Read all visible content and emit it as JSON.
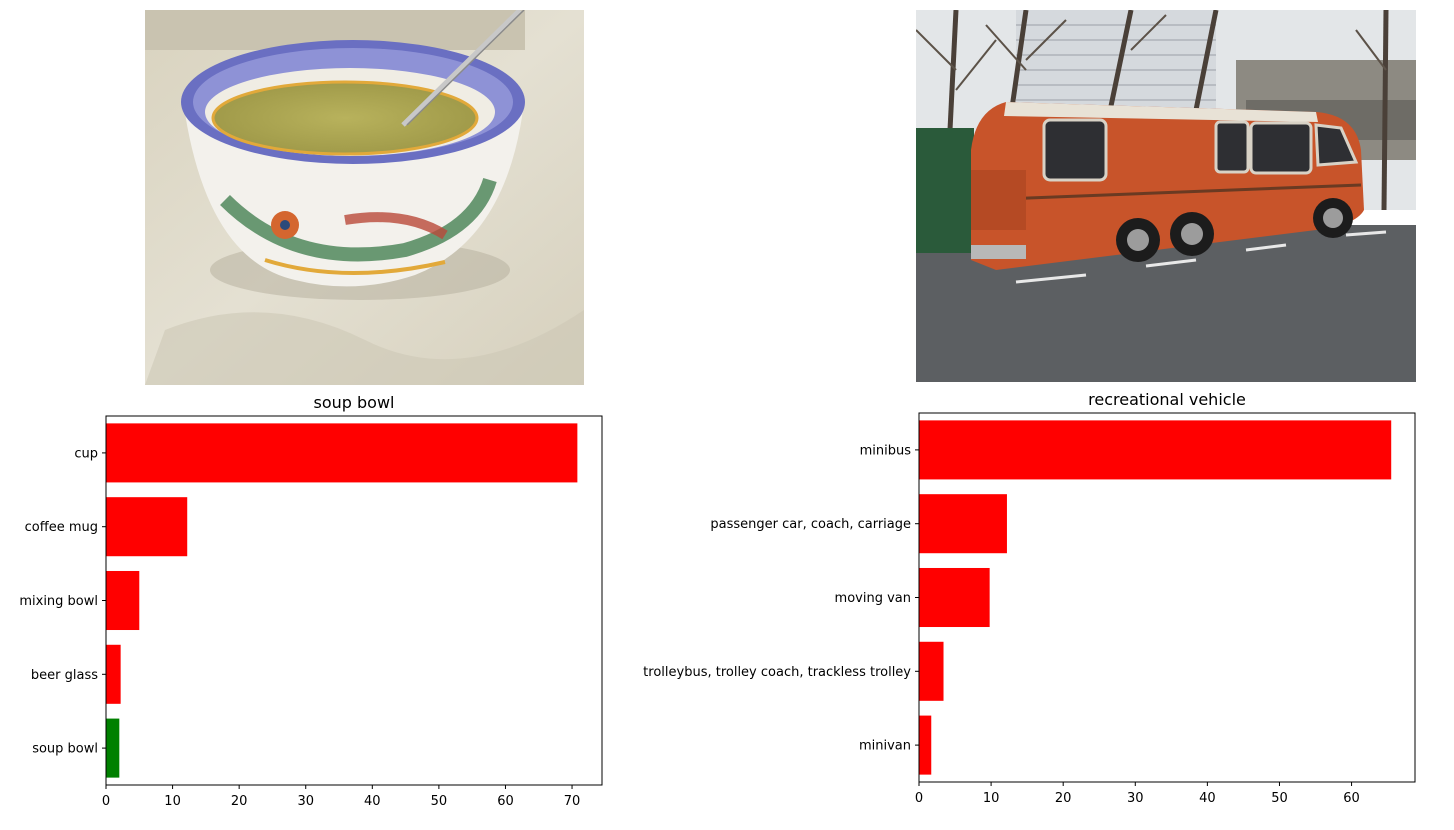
{
  "images": [
    {
      "subject": "soup bowl photo"
    },
    {
      "subject": "orange motorhome photo"
    }
  ],
  "chart_data": [
    {
      "type": "bar",
      "orientation": "horizontal",
      "title": "soup bowl",
      "categories": [
        "cup",
        "coffee mug",
        "mixing bowl",
        "beer glass",
        "soup bowl"
      ],
      "values": [
        70.8,
        12.2,
        5.0,
        2.2,
        2.0
      ],
      "bar_colors": [
        "#ff0000",
        "#ff0000",
        "#ff0000",
        "#ff0000",
        "#008000"
      ],
      "xlim": [
        0,
        74.5
      ],
      "xticks": [
        0,
        10,
        20,
        30,
        40,
        50,
        60,
        70
      ],
      "xlabel": "",
      "ylabel": "",
      "grid": false
    },
    {
      "type": "bar",
      "orientation": "horizontal",
      "title": "recreational vehicle",
      "categories": [
        "minibus",
        "passenger car, coach, carriage",
        "moving van",
        "trolleybus, trolley coach, trackless trolley",
        "minivan"
      ],
      "values": [
        65.5,
        12.2,
        9.8,
        3.4,
        1.7
      ],
      "bar_colors": [
        "#ff0000",
        "#ff0000",
        "#ff0000",
        "#ff0000",
        "#ff0000"
      ],
      "xlim": [
        0,
        68.8
      ],
      "xticks": [
        0,
        10,
        20,
        30,
        40,
        50,
        60
      ],
      "xlabel": "",
      "ylabel": "",
      "grid": false
    }
  ]
}
